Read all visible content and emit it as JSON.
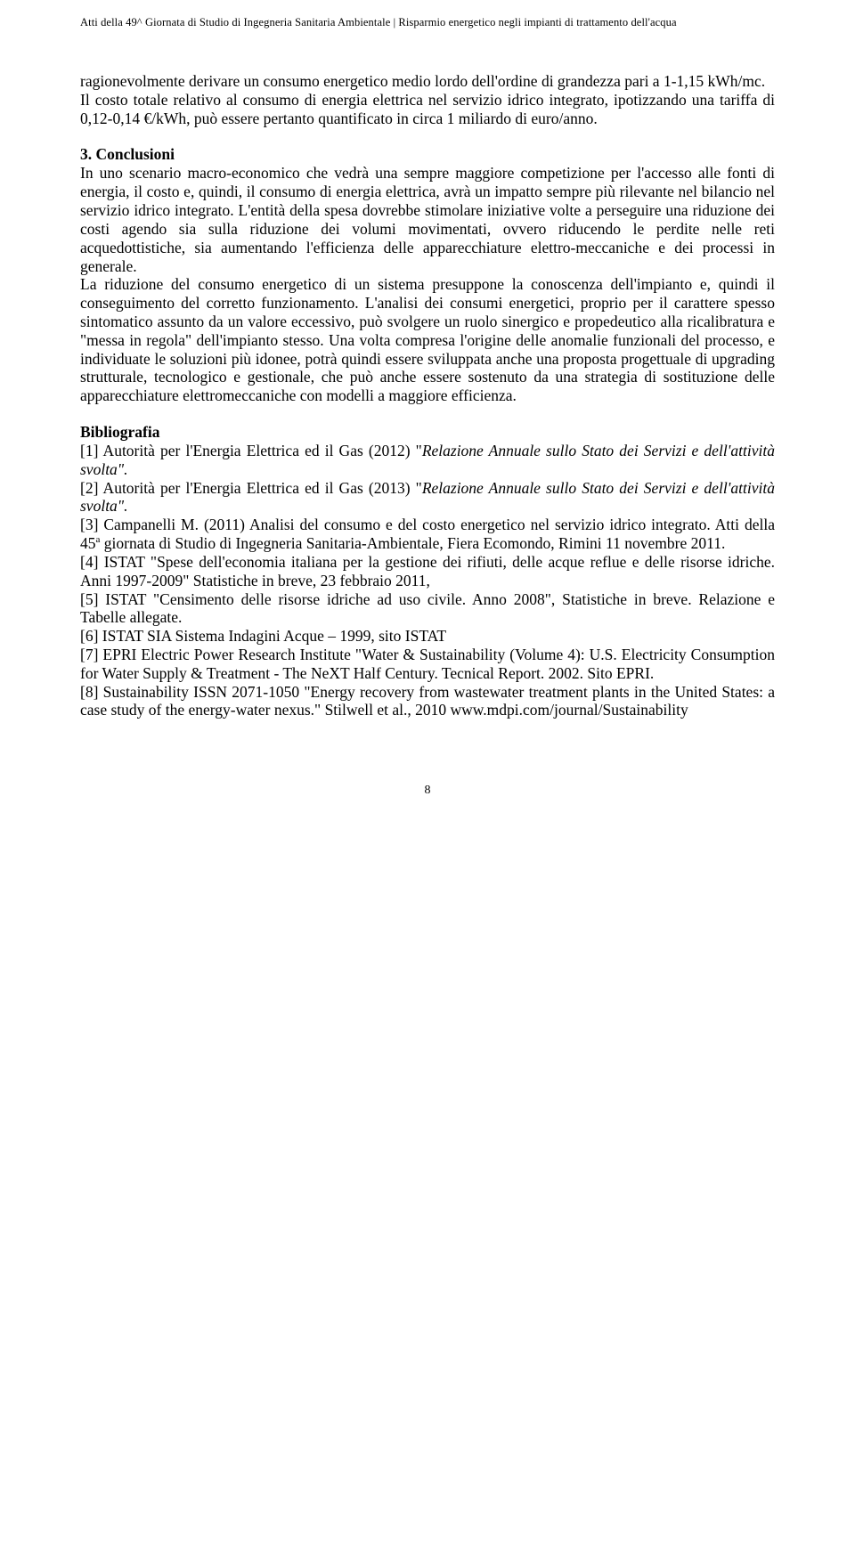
{
  "header": "Atti della 49^ Giornata di Studio di Ingegneria Sanitaria Ambientale | Risparmio energetico negli impianti di trattamento dell'acqua",
  "paragraph1": "ragionevolmente derivare un consumo energetico medio lordo dell'ordine di grandezza pari a 1-1,15 kWh/mc.",
  "paragraph2": "Il costo totale relativo al consumo di energia elettrica nel servizio idrico integrato, ipotizzando una tariffa di 0,12-0,14 €/kWh, può essere pertanto quantificato  in circa 1 miliardo di euro/anno.",
  "section3": {
    "title": "3. Conclusioni",
    "body1": "In uno scenario macro-economico che vedrà una sempre maggiore competizione per l'accesso alle fonti di energia, il costo e, quindi, il consumo di energia elettrica, avrà un impatto sempre più rilevante nel bilancio nel servizio idrico integrato. L'entità della spesa dovrebbe stimolare iniziative volte a perseguire una riduzione dei costi agendo sia sulla riduzione dei volumi movimentati, ovvero riducendo le perdite nelle reti acquedottistiche, sia aumentando l'efficienza delle apparecchiature elettro-meccaniche e dei processi in generale.",
    "body2": "La riduzione del consumo energetico  di un sistema presuppone la conoscenza dell'impianto e, quindi il conseguimento del corretto funzionamento. L'analisi dei consumi energetici, proprio per il carattere spesso sintomatico assunto da un valore eccessivo, può svolgere un ruolo sinergico e propedeutico alla ricalibratura e \"messa in regola\" dell'impianto stesso. Una volta compresa l'origine delle anomalie funzionali del processo, e individuate le soluzioni più idonee, potrà quindi essere sviluppata anche una proposta progettuale di upgrading strutturale, tecnologico e gestionale, che può anche essere sostenuto da una strategia di sostituzione delle apparecchiature elettromeccaniche con modelli a maggiore efficienza."
  },
  "biblio": {
    "title": "Bibliografia",
    "ref1_a": "[1] Autorità per l'Energia Elettrica ed il Gas  (2012) \"",
    "ref1_i": "Relazione Annuale sullo Stato dei Servizi e dell'attività svolta\".",
    "ref2_a": "[2] Autorità per l'Energia Elettrica ed il Gas  (2013) \"",
    "ref2_i": "Relazione Annuale sullo Stato dei Servizi e dell'attività svolta\".",
    "ref3_a": "[3] Campanelli M. (2011) Analisi del consumo e del costo energetico nel servizio idrico integrato. Atti della 45",
    "ref3_sup": "a",
    "ref3_b": " giornata di Studio di Ingegneria Sanitaria-Ambientale, Fiera Ecomondo, Rimini 11 novembre 2011.",
    "ref4": "[4] ISTAT \"Spese dell'economia italiana per la gestione dei rifiuti, delle acque reflue e delle risorse idriche. Anni 1997-2009\" Statistiche in breve, 23 febbraio 2011,",
    "ref5": "[5] ISTAT \"Censimento delle risorse idriche ad uso civile. Anno 2008\", Statistiche in breve. Relazione e Tabelle allegate.",
    "ref6": "[6] ISTAT SIA Sistema Indagini Acque – 1999, sito ISTAT",
    "ref7": "[7] EPRI Electric Power Research Institute \"Water & Sustainability (Volume 4): U.S. Electricity Consumption for Water Supply & Treatment - The NeXT Half Century. Tecnical Report. 2002. Sito EPRI.",
    "ref8": "[8] Sustainability ISSN 2071-1050 \"Energy recovery from wastewater treatment plants in the United States: a case study  of the energy-water nexus.\" Stilwell et al., 2010 www.mdpi.com/journal/Sustainability"
  },
  "page_number": "8"
}
